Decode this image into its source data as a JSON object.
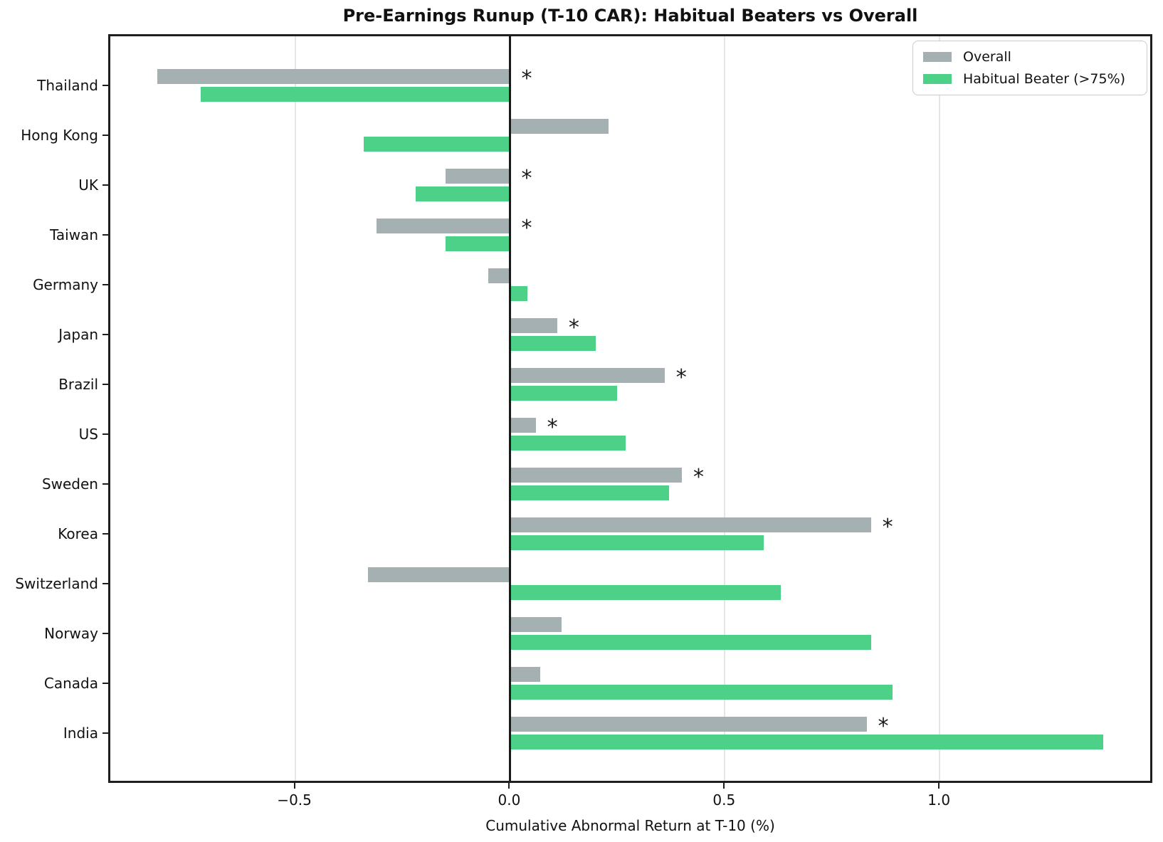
{
  "chart_data": {
    "type": "bar",
    "orientation": "horizontal",
    "title": "Pre-Earnings Runup (T-10 CAR): Habitual Beaters vs Overall",
    "xlabel": "Cumulative Abnormal Return at T-10 (%)",
    "categories": [
      "Thailand",
      "Hong Kong",
      "UK",
      "Taiwan",
      "Germany",
      "Japan",
      "Brazil",
      "US",
      "Sweden",
      "Korea",
      "Switzerland",
      "Norway",
      "Canada",
      "India"
    ],
    "series": [
      {
        "name": "Overall",
        "color": "#a5b0b3",
        "values": [
          -0.82,
          0.23,
          -0.15,
          -0.31,
          -0.05,
          0.11,
          0.36,
          0.06,
          0.4,
          0.84,
          -0.33,
          0.12,
          0.07,
          0.83
        ],
        "significant": [
          true,
          false,
          true,
          true,
          false,
          true,
          true,
          true,
          true,
          true,
          false,
          false,
          false,
          true
        ]
      },
      {
        "name": "Habitual Beater (>75%)",
        "color": "#4dd188",
        "values": [
          -0.72,
          -0.34,
          -0.22,
          -0.15,
          0.04,
          0.2,
          0.25,
          0.27,
          0.37,
          0.59,
          0.63,
          0.84,
          0.89,
          1.38
        ],
        "significant": [
          false,
          false,
          false,
          false,
          false,
          false,
          false,
          false,
          false,
          false,
          false,
          false,
          false,
          false
        ]
      }
    ],
    "significance_marker": "*",
    "xticks": {
      "values": [
        -0.5,
        0.0,
        0.5,
        1.0
      ],
      "labels": [
        "−0.5",
        "0.0",
        "0.5",
        "1.0"
      ]
    },
    "xlim": [
      -0.93,
      1.49
    ],
    "grid": {
      "axis": "x",
      "color": "#e5e5e5"
    },
    "zero_line": {
      "value": 0.0,
      "color": "#1a1a1a"
    },
    "axis_color": "#1f1f1f",
    "background": "#ffffff",
    "legend": {
      "position": "upper right",
      "entries": [
        "Overall",
        "Habitual Beater (>75%)"
      ]
    }
  }
}
